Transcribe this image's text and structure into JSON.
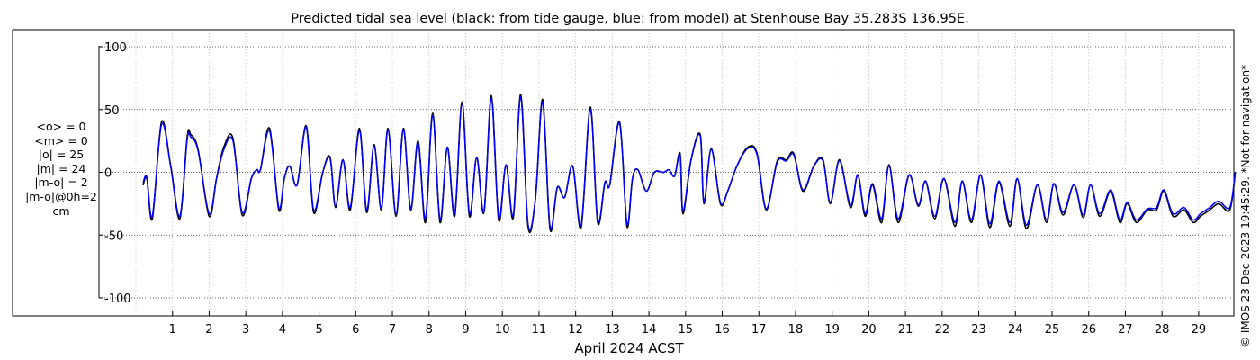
{
  "chart_data": {
    "type": "line",
    "title": "Predicted tidal sea level (black: from tide gauge, blue: from model) at Stenhouse Bay 35.283S 136.95E.",
    "xlabel": "April 2024 ACST",
    "ylabel": "",
    "xlim": [
      0,
      30
    ],
    "ylim": [
      -105,
      105
    ],
    "x_ticks": [
      "1",
      "2",
      "3",
      "4",
      "5",
      "6",
      "7",
      "8",
      "9",
      "10",
      "11",
      "12",
      "13",
      "14",
      "15",
      "16",
      "17",
      "18",
      "19",
      "20",
      "21",
      "22",
      "23",
      "24",
      "25",
      "26",
      "27",
      "28",
      "29"
    ],
    "y_ticks": [
      "100",
      "50",
      "0",
      "-50",
      "-100"
    ],
    "y_tick_values": [
      100,
      50,
      0,
      -50,
      -100
    ],
    "grid": true,
    "series": [
      {
        "name": "black: from tide gauge",
        "color": "#000000",
        "days": [
          0.2,
          0.3,
          0.45,
          0.7,
          0.95,
          1.2,
          1.4,
          1.5,
          1.7,
          2.0,
          2.2,
          2.4,
          2.65,
          2.9,
          3.15,
          3.3,
          3.4,
          3.65,
          3.9,
          4.05,
          4.2,
          4.4,
          4.65,
          4.85,
          5.1,
          5.3,
          5.45,
          5.65,
          5.85,
          6.1,
          6.3,
          6.5,
          6.7,
          6.88,
          7.1,
          7.3,
          7.5,
          7.7,
          7.9,
          8.1,
          8.3,
          8.5,
          8.7,
          8.9,
          9.1,
          9.3,
          9.5,
          9.7,
          9.9,
          10.1,
          10.3,
          10.5,
          10.7,
          10.9,
          11.1,
          11.3,
          11.5,
          11.7,
          11.92,
          12.15,
          12.4,
          12.6,
          12.8,
          12.93,
          13.2,
          13.4,
          13.55,
          13.7,
          13.93,
          14.15,
          14.4,
          14.55,
          14.7,
          14.85,
          14.93,
          15.15,
          15.4,
          15.5,
          15.7,
          15.95,
          16.15,
          16.4,
          16.7,
          16.95,
          17.2,
          17.5,
          17.75,
          17.95,
          18.2,
          18.5,
          18.75,
          18.95,
          19.2,
          19.5,
          19.7,
          19.9,
          20.1,
          20.35,
          20.55,
          20.8,
          21.1,
          21.35,
          21.55,
          21.8,
          22.05,
          22.35,
          22.55,
          22.8,
          23.05,
          23.3,
          23.55,
          23.85,
          24.05,
          24.3,
          24.6,
          24.85,
          25.05,
          25.3,
          25.6,
          25.85,
          26.05,
          26.3,
          26.6,
          26.85,
          27.05,
          27.3,
          27.6,
          27.85,
          28.05,
          28.3,
          28.6,
          28.85,
          29.05,
          29.3,
          29.55,
          29.85,
          30.0
        ],
        "values": [
          -10,
          -5,
          -37,
          40,
          5,
          -37,
          28,
          30,
          18,
          -35,
          -5,
          20,
          27,
          -34,
          -5,
          2,
          2,
          35,
          -30,
          -5,
          5,
          -10,
          37,
          -32,
          0,
          12,
          -28,
          10,
          -30,
          35,
          -32,
          22,
          -30,
          35,
          -35,
          35,
          -30,
          25,
          -40,
          47,
          -40,
          20,
          -35,
          56,
          -35,
          12,
          -32,
          61,
          -38,
          6,
          -36,
          62,
          -43,
          -22,
          58,
          -45,
          -12,
          -20,
          5,
          -44,
          52,
          -40,
          -8,
          -10,
          40,
          -43,
          -5,
          2,
          -15,
          0,
          0,
          2,
          -3,
          15,
          -33,
          10,
          30,
          -25,
          19,
          -25,
          -15,
          5,
          20,
          15,
          -30,
          9,
          10,
          15,
          -15,
          5,
          10,
          -25,
          10,
          -28,
          -2,
          -35,
          -10,
          -40,
          6,
          -40,
          -2,
          -27,
          -7,
          -37,
          -5,
          -43,
          -7,
          -40,
          -2,
          -44,
          -8,
          -43,
          -5,
          -45,
          -10,
          -40,
          -9,
          -34,
          -10,
          -36,
          -10,
          -35,
          -15,
          -40,
          -25,
          -40,
          -30,
          -30,
          -15,
          -35,
          -30,
          -40,
          -35,
          -30,
          -25,
          -30,
          0
        ]
      },
      {
        "name": "blue: from model",
        "color": "#0000ff",
        "days": [
          0.2,
          0.3,
          0.45,
          0.7,
          0.95,
          1.2,
          1.4,
          1.5,
          1.7,
          2.0,
          2.2,
          2.4,
          2.65,
          2.9,
          3.15,
          3.3,
          3.4,
          3.65,
          3.9,
          4.05,
          4.2,
          4.4,
          4.65,
          4.85,
          5.1,
          5.3,
          5.45,
          5.65,
          5.85,
          6.1,
          6.3,
          6.5,
          6.7,
          6.88,
          7.1,
          7.3,
          7.5,
          7.7,
          7.9,
          8.1,
          8.3,
          8.5,
          8.7,
          8.9,
          9.1,
          9.3,
          9.5,
          9.7,
          9.9,
          10.1,
          10.3,
          10.5,
          10.7,
          10.9,
          11.1,
          11.3,
          11.5,
          11.7,
          11.92,
          12.15,
          12.4,
          12.6,
          12.8,
          12.93,
          13.2,
          13.4,
          13.55,
          13.7,
          13.93,
          14.15,
          14.4,
          14.55,
          14.7,
          14.85,
          14.93,
          15.15,
          15.4,
          15.5,
          15.7,
          15.95,
          16.15,
          16.4,
          16.7,
          16.95,
          17.2,
          17.5,
          17.75,
          17.95,
          18.2,
          18.5,
          18.75,
          18.95,
          19.2,
          19.5,
          19.7,
          19.9,
          20.1,
          20.35,
          20.55,
          20.8,
          21.1,
          21.35,
          21.55,
          21.8,
          22.05,
          22.35,
          22.55,
          22.8,
          23.05,
          23.3,
          23.55,
          23.85,
          24.05,
          24.3,
          24.6,
          24.85,
          25.05,
          25.3,
          25.6,
          25.85,
          26.05,
          26.3,
          26.6,
          26.85,
          27.05,
          27.3,
          27.6,
          27.85,
          28.05,
          28.3,
          28.6,
          28.85,
          29.05,
          29.3,
          29.55,
          29.85,
          30.0
        ],
        "values": [
          -8,
          -4,
          -35,
          38,
          5,
          -35,
          26,
          28,
          17,
          -33,
          -5,
          18,
          25,
          -32,
          -5,
          2,
          2,
          33,
          -28,
          -5,
          5,
          -10,
          36,
          -30,
          0,
          11,
          -27,
          10,
          -28,
          33,
          -30,
          21,
          -29,
          34,
          -33,
          34,
          -29,
          24,
          -37,
          45,
          -38,
          20,
          -33,
          54,
          -33,
          12,
          -31,
          59,
          -36,
          6,
          -34,
          60,
          -41,
          -22,
          56,
          -43,
          -12,
          -20,
          5,
          -42,
          50,
          -38,
          -8,
          -10,
          39,
          -41,
          -5,
          2,
          -15,
          0,
          0,
          2,
          -3,
          14,
          -31,
          10,
          29,
          -24,
          18,
          -24,
          -15,
          5,
          19,
          14,
          -29,
          8,
          9,
          14,
          -14,
          5,
          9,
          -24,
          9,
          -26,
          -2,
          -33,
          -9,
          -37,
          5,
          -37,
          -2,
          -26,
          -7,
          -35,
          -5,
          -40,
          -7,
          -38,
          -2,
          -41,
          -7,
          -40,
          -5,
          -42,
          -10,
          -38,
          -9,
          -32,
          -10,
          -34,
          -10,
          -33,
          -14,
          -38,
          -24,
          -38,
          -29,
          -28,
          -14,
          -33,
          -28,
          -38,
          -33,
          -28,
          -23,
          -28,
          0
        ]
      }
    ]
  },
  "stats_lines": [
    "<o> = 0",
    "<m> = 0",
    "|o| = 25",
    "|m| = 24",
    "|m-o| = 2",
    "|m-o|@0h=2",
    "cm"
  ],
  "side_note": "© IMOS 23-Dec-2023 19:45:29. *Not for navigation*"
}
